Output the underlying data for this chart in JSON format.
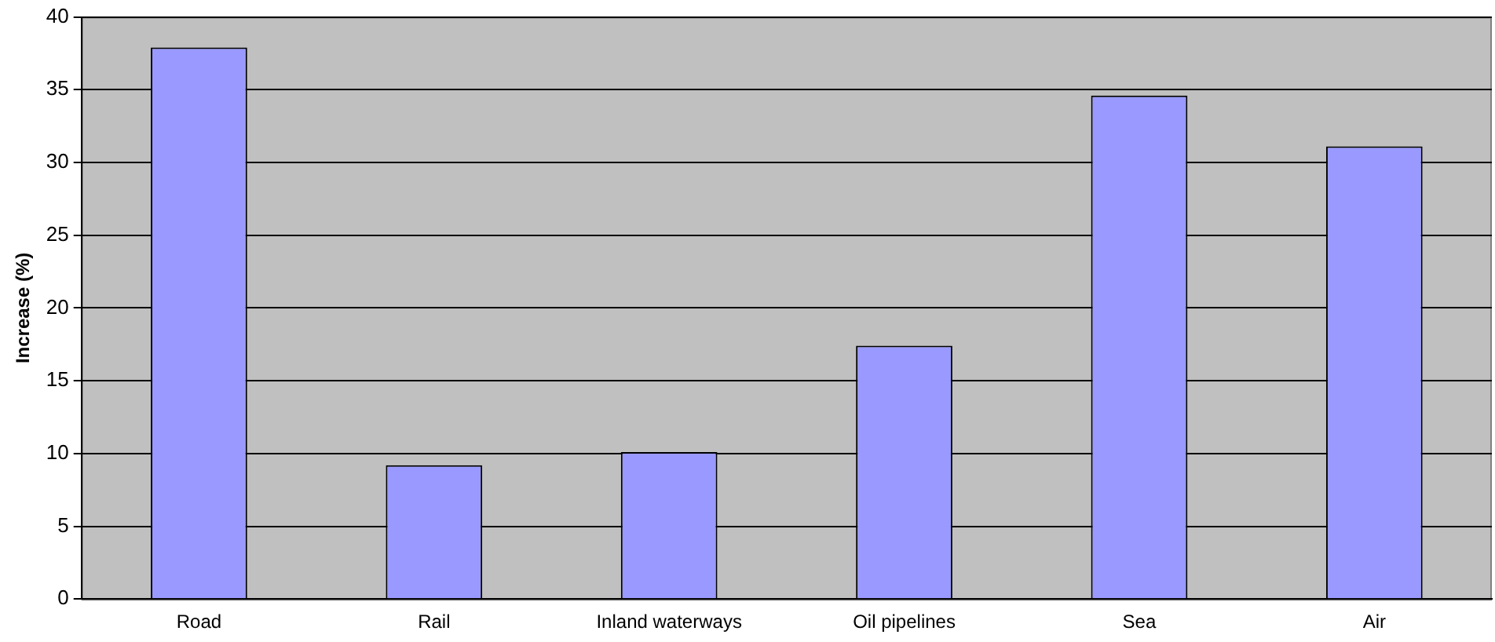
{
  "chart_data": {
    "type": "bar",
    "ylabel": "Increase (%)",
    "categories": [
      "Road",
      "Rail",
      "Inland waterways",
      "Oil pipelines",
      "Sea",
      "Air"
    ],
    "values": [
      37.9,
      9.2,
      10.1,
      17.4,
      34.6,
      31.1
    ],
    "color": "#9999ff",
    "ylim": [
      0,
      40
    ],
    "yticks": [
      0,
      5,
      10,
      15,
      20,
      25,
      30,
      35,
      40
    ],
    "grid": "y",
    "legend": false
  }
}
